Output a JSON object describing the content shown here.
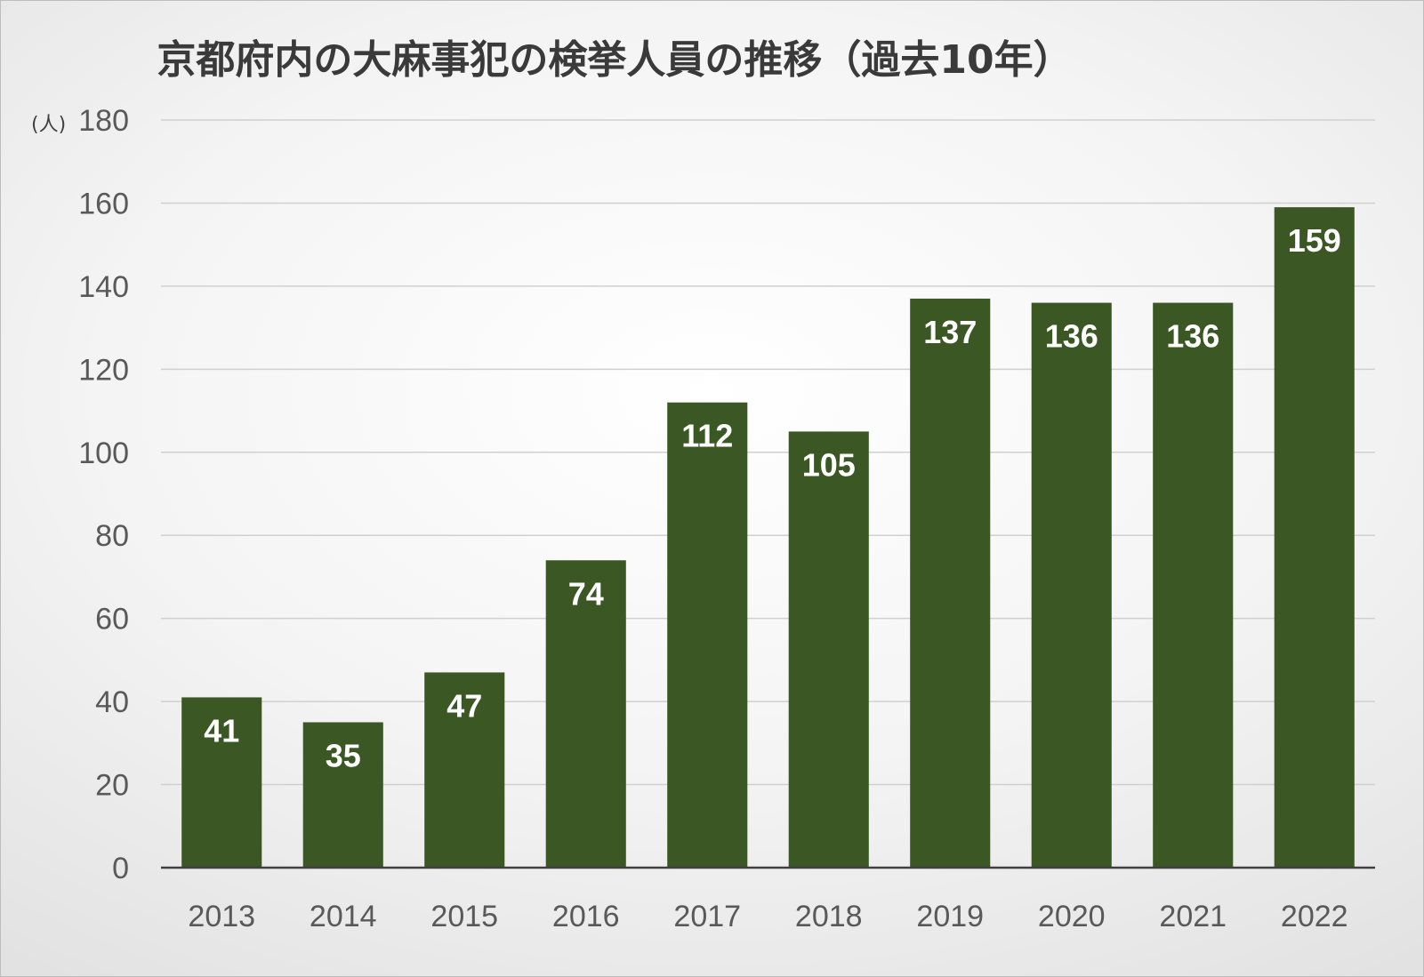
{
  "chart_data": {
    "type": "bar",
    "title": "京都府内の大麻事犯の検挙人員の推移（過去10年）",
    "ylabel": "(人)",
    "xlabel": "",
    "categories": [
      "2013",
      "2014",
      "2015",
      "2016",
      "2017",
      "2018",
      "2019",
      "2020",
      "2021",
      "2022"
    ],
    "values": [
      41,
      35,
      47,
      74,
      112,
      105,
      137,
      136,
      136,
      159
    ],
    "ylim": [
      0,
      180
    ],
    "yticks": [
      0,
      20,
      40,
      60,
      80,
      100,
      120,
      140,
      160,
      180
    ],
    "grid": true,
    "data_labels": true,
    "legend": "none",
    "colors": {
      "bar": "#3b5724",
      "data_label": "#ffffff",
      "gridline": "#d0d0d0",
      "axis": "#404040",
      "tick_text": "#595959",
      "title_text": "#3a3a3a"
    }
  }
}
